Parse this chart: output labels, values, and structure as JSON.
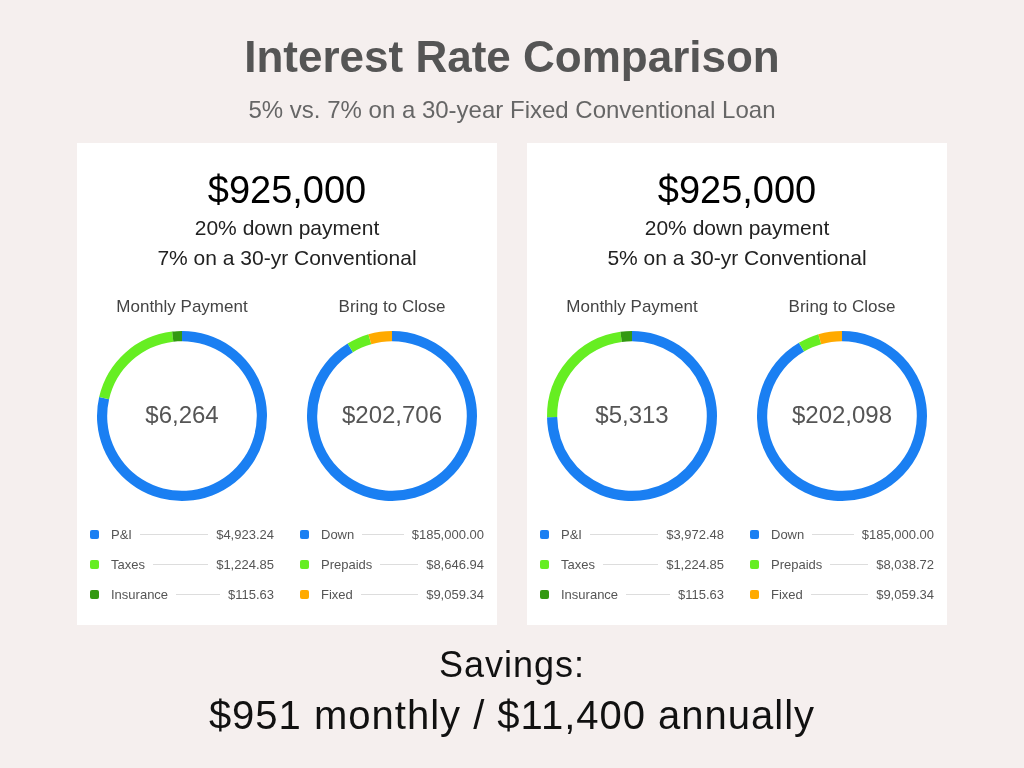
{
  "chart_data": [
    {
      "type": "other",
      "title": "Interest Rate Comparison",
      "subtitle": "5% vs. 7% on a 30-year Fixed Conventional Loan",
      "annotations": [
        "Savings:",
        "$951 monthly / $11,400 annually"
      ]
    },
    {
      "type": "other",
      "title": "$925,000",
      "annotations": [
        "20% down payment",
        "7% on a 30-yr Conventional"
      ]
    },
    {
      "type": "donut",
      "title": "Monthly Payment",
      "categories": [
        "P&I",
        "Taxes",
        "Insurance"
      ],
      "values": [
        4923.24,
        1224.85,
        115.63
      ],
      "value_labels": [
        "$4,923.24",
        "$1,224.85",
        "$115.63"
      ],
      "colors": [
        "#1a7ff2",
        "#66ee22",
        "#339911"
      ],
      "annotations": [
        "$6,264"
      ],
      "legend": "bottom"
    },
    {
      "type": "donut",
      "title": "Bring to Close",
      "categories": [
        "Down",
        "Prepaids",
        "Fixed"
      ],
      "values": [
        185000,
        8646.94,
        9059.34
      ],
      "value_labels": [
        "$185,000.00",
        "$8,646.94",
        "$9,059.34"
      ],
      "colors": [
        "#1a7ff2",
        "#66ee22",
        "#ffaa00"
      ],
      "annotations": [
        "$202,706"
      ],
      "legend": "bottom"
    },
    {
      "type": "other",
      "title": "$925,000",
      "annotations": [
        "20% down payment",
        "5% on a 30-yr Conventional"
      ]
    },
    {
      "type": "donut",
      "title": "Monthly Payment",
      "categories": [
        "P&I",
        "Taxes",
        "Insurance"
      ],
      "values": [
        3972.48,
        1224.85,
        115.63
      ],
      "value_labels": [
        "$3,972.48",
        "$1,224.85",
        "$115.63"
      ],
      "colors": [
        "#1a7ff2",
        "#66ee22",
        "#339911"
      ],
      "annotations": [
        "$5,313"
      ],
      "legend": "bottom"
    },
    {
      "type": "donut",
      "title": "Bring to Close",
      "categories": [
        "Down",
        "Prepaids",
        "Fixed"
      ],
      "values": [
        185000,
        8038.72,
        9059.34
      ],
      "value_labels": [
        "$185,000.00",
        "$8,038.72",
        "$9,059.34"
      ],
      "colors": [
        "#1a7ff2",
        "#66ee22",
        "#ffaa00"
      ],
      "annotations": [
        "$202,098"
      ],
      "legend": "bottom"
    }
  ]
}
